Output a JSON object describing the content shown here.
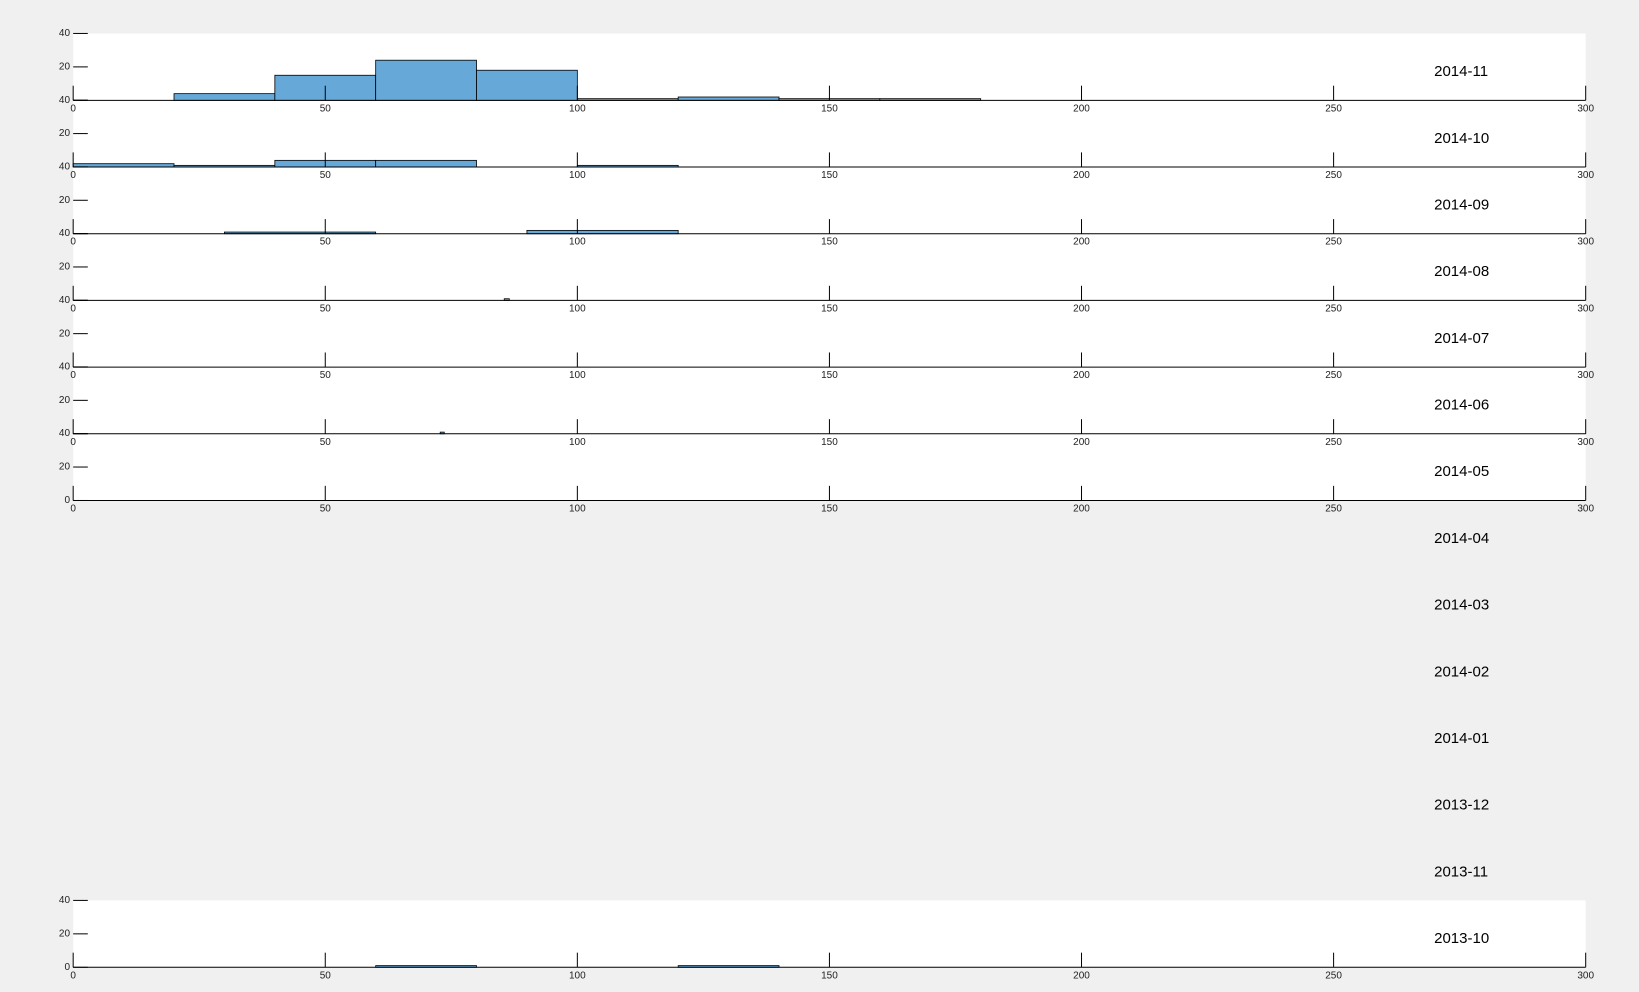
{
  "chart_data": [
    {
      "type": "histogram",
      "title": "2014-11",
      "bins": [
        20,
        40,
        60,
        80,
        100,
        120,
        140,
        160,
        180
      ],
      "counts": [
        4,
        15,
        24,
        18,
        1,
        2,
        1,
        1
      ],
      "color": "#66a8d8",
      "xlim": [
        0,
        300
      ],
      "xticks": [
        0,
        50,
        100,
        150,
        200,
        250,
        300
      ],
      "ylim": [
        0,
        40
      ],
      "yticks": [
        0,
        20,
        40
      ]
    },
    {
      "type": "histogram",
      "title": "2014-10",
      "bins": [
        0,
        20,
        40,
        60,
        80,
        100,
        120
      ],
      "counts": [
        2,
        1,
        4,
        4,
        0,
        1
      ],
      "color": "#66a8d8",
      "xlim": [
        0,
        300
      ],
      "xticks": [
        0,
        50,
        100,
        150,
        200,
        250,
        300
      ],
      "ylim": [
        0,
        40
      ],
      "yticks": [
        0,
        20,
        40
      ]
    },
    {
      "type": "histogram",
      "title": "2014-09",
      "bins": [
        30,
        60,
        90,
        120
      ],
      "counts": [
        1,
        0,
        2
      ],
      "color": "#66a8d8",
      "xlim": [
        0,
        300
      ],
      "xticks": [
        0,
        50,
        100,
        150,
        200,
        250,
        300
      ],
      "ylim": [
        0,
        40
      ],
      "yticks": [
        0,
        20,
        40
      ]
    },
    {
      "type": "histogram",
      "title": "2014-08",
      "bins": [
        85.5,
        86.5
      ],
      "counts": [
        1
      ],
      "color": "#66a8d8",
      "xlim": [
        0,
        300
      ],
      "xticks": [
        0,
        50,
        100,
        150,
        200,
        250,
        300
      ],
      "ylim": [
        0,
        40
      ],
      "yticks": [
        0,
        20,
        40
      ]
    },
    {
      "type": "histogram",
      "title": "2014-07",
      "xlim": [
        0,
        300
      ],
      "xticks": [
        0,
        50,
        100,
        150,
        200,
        250,
        300
      ],
      "ylim": [
        0,
        40
      ],
      "yticks": [
        0,
        20,
        40
      ]
    },
    {
      "type": "histogram",
      "title": "2014-06",
      "bins": [
        72.8,
        73.6
      ],
      "counts": [
        1
      ],
      "color": "#66a8d8",
      "xlim": [
        0,
        300
      ],
      "xticks": [
        0,
        50,
        100,
        150,
        200,
        250,
        300
      ],
      "ylim": [
        0,
        40
      ],
      "yticks": [
        0,
        20,
        40
      ]
    },
    {
      "type": "histogram",
      "title": "2014-05",
      "xlim": [
        0,
        300
      ],
      "xticks": [
        0,
        50,
        100,
        150,
        200,
        250,
        300
      ],
      "ylim": [
        0,
        40
      ],
      "yticks": [
        0,
        20,
        40
      ]
    },
    {
      "type": "histogram",
      "title": "2014-04"
    },
    {
      "type": "histogram",
      "title": "2014-03"
    },
    {
      "type": "histogram",
      "title": "2014-02"
    },
    {
      "type": "histogram",
      "title": "2014-01"
    },
    {
      "type": "histogram",
      "title": "2013-12"
    },
    {
      "type": "histogram",
      "title": "2013-11"
    },
    {
      "type": "histogram",
      "title": "2013-10",
      "bins": [
        60,
        80,
        100,
        120,
        140
      ],
      "counts": [
        1,
        0,
        0,
        1
      ],
      "color": "#66a8d8",
      "xlim": [
        0,
        300
      ],
      "xticks": [
        0,
        50,
        100,
        150,
        200,
        250,
        300
      ],
      "ylim": [
        0,
        40
      ],
      "yticks": [
        0,
        20,
        40
      ]
    }
  ]
}
